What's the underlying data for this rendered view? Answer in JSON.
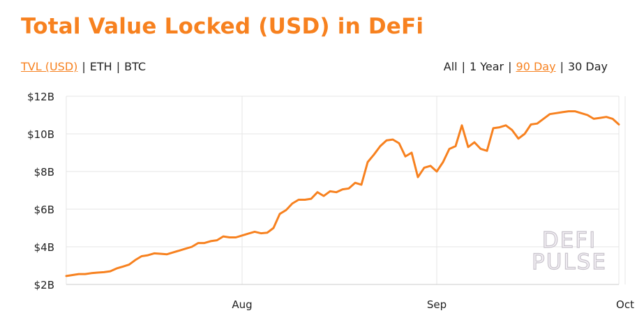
{
  "title": "Total Value Locked (USD) in DeFi",
  "unit_toggle": [
    {
      "label": "TVL (USD)",
      "active": true
    },
    {
      "label": "ETH",
      "active": false
    },
    {
      "label": "BTC",
      "active": false
    }
  ],
  "range_toggle": [
    {
      "label": "All",
      "active": false
    },
    {
      "label": "1 Year",
      "active": false
    },
    {
      "label": "90 Day",
      "active": true
    },
    {
      "label": "30 Day",
      "active": false
    }
  ],
  "separator": "|",
  "watermark": {
    "line1": "DEFI",
    "line2": "PULSE"
  },
  "colors": {
    "accent": "#f7811f",
    "line": "#f7811f",
    "grid": "#e6e6e6",
    "text": "#222222"
  },
  "chart_data": {
    "type": "line",
    "title": "Total Value Locked (USD) in DeFi",
    "xlabel": "",
    "ylabel": "",
    "grid": true,
    "legend": "none",
    "x_ticks": [
      {
        "label": "Aug",
        "index": 28
      },
      {
        "label": "Sep",
        "index": 59
      },
      {
        "label": "Oct",
        "index": 89
      }
    ],
    "y_ticks": [
      "$2B",
      "$4B",
      "$6B",
      "$8B",
      "$10B",
      "$12B"
    ],
    "y_tick_values": [
      2,
      4,
      6,
      8,
      10,
      12
    ],
    "ylim": [
      2,
      12
    ],
    "y_unit": "billion USD",
    "series": [
      {
        "values": [
          2.45,
          2.5,
          2.55,
          2.55,
          2.6,
          2.63,
          2.65,
          2.7,
          2.85,
          2.95,
          3.05,
          3.3,
          3.5,
          3.55,
          3.65,
          3.63,
          3.6,
          3.7,
          3.8,
          3.9,
          4.0,
          4.2,
          4.2,
          4.3,
          4.35,
          4.55,
          4.5,
          4.5,
          4.6,
          4.7,
          4.8,
          4.72,
          4.75,
          5.0,
          5.75,
          5.95,
          6.3,
          6.5,
          6.5,
          6.55,
          6.9,
          6.7,
          6.95,
          6.9,
          7.05,
          7.1,
          7.4,
          7.3,
          8.5,
          8.9,
          9.35,
          9.65,
          9.7,
          9.5,
          8.8,
          9.0,
          7.7,
          8.2,
          8.3,
          8.0,
          8.5,
          9.2,
          9.35,
          10.45,
          9.3,
          9.55,
          9.2,
          9.1,
          10.3,
          10.35,
          10.45,
          10.2,
          9.75,
          10.0,
          10.5,
          10.55,
          10.8,
          11.05,
          11.1,
          11.15,
          11.2,
          11.2,
          11.1,
          11.0,
          10.8,
          10.85,
          10.9,
          10.8,
          10.5
        ]
      }
    ]
  }
}
